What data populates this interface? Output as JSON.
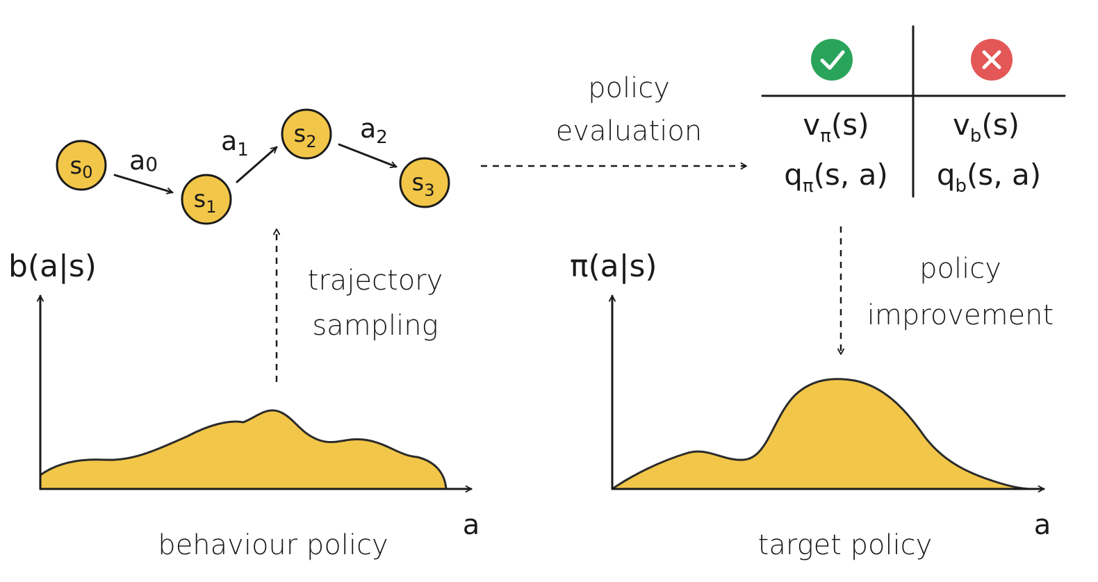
{
  "states": [
    {
      "name": "s",
      "sub": "0"
    },
    {
      "name": "s",
      "sub": "1"
    },
    {
      "name": "s",
      "sub": "2"
    },
    {
      "name": "s",
      "sub": "3"
    }
  ],
  "actions": [
    {
      "name": "a",
      "sub": "0"
    },
    {
      "name": "a",
      "sub": "1"
    },
    {
      "name": "a",
      "sub": "2"
    }
  ],
  "labels": {
    "policy_evaluation": [
      "policy",
      "evaluation"
    ],
    "trajectory_sampling": [
      "trajectory",
      "sampling"
    ],
    "policy_improvement": [
      "policy",
      "improvement"
    ],
    "behaviour_policy": "behaviour policy",
    "target_policy": "target policy"
  },
  "left_plot": {
    "ylabel": "b(a|s)",
    "xlabel": "a"
  },
  "right_plot": {
    "ylabel": "π(a|s)",
    "xlabel": "a"
  },
  "table": {
    "header_icons": [
      "check-icon",
      "cross-icon"
    ],
    "rows": [
      [
        {
          "base": "v",
          "sub": "π",
          "rest": "(s)"
        },
        {
          "base": "v",
          "sub": "b",
          "rest": "(s)"
        }
      ],
      [
        {
          "base": "q",
          "sub": "π",
          "rest": "(s, a)"
        },
        {
          "base": "q",
          "sub": "b",
          "rest": "(s, a)"
        }
      ]
    ]
  },
  "colors": {
    "accent": "#f2c648",
    "check": "#2aa45a",
    "cross": "#e35757",
    "ink": "#1a1a1a"
  }
}
